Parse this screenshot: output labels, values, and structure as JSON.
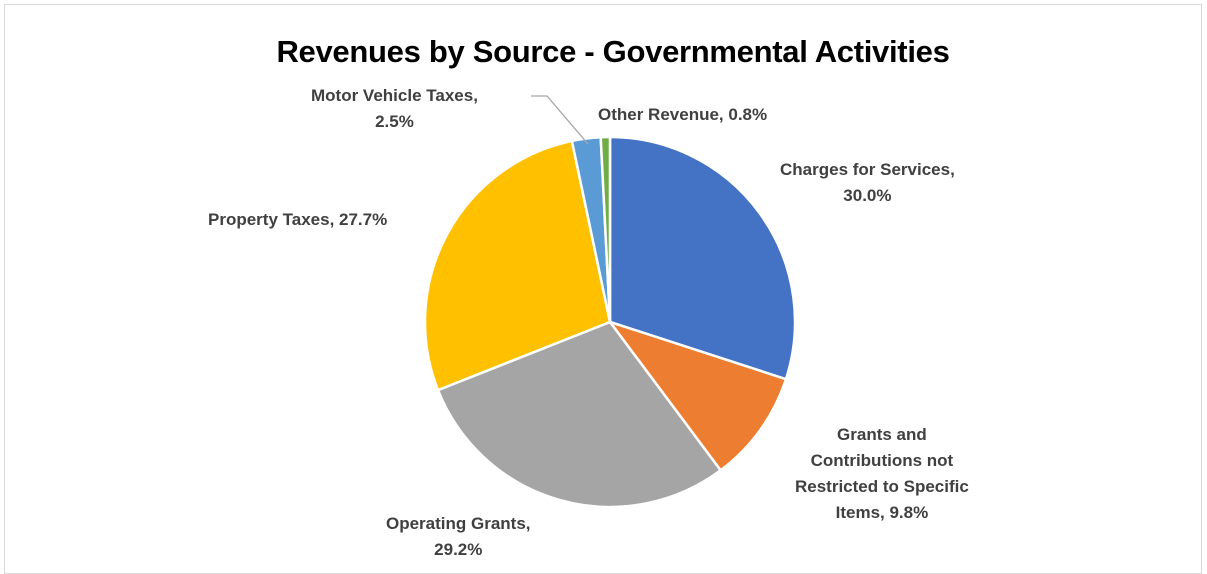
{
  "chart_data": {
    "type": "pie",
    "title": "Revenues by Source - Governmental Activities",
    "slices": [
      {
        "name": "Charges for Services",
        "value": 30.0,
        "label_line1": "Charges for Services,",
        "label_line2": "30.0%",
        "color": "#4472C4"
      },
      {
        "name": "Grants and Contributions not Restricted to Specific Items",
        "value": 9.8,
        "label_line1": "Grants and",
        "label_line2": "Contributions not",
        "label_line3": "Restricted to Specific",
        "label_line4": "Items, 9.8%",
        "color": "#ED7D31"
      },
      {
        "name": "Operating Grants",
        "value": 29.2,
        "label_line1": "Operating Grants,",
        "label_line2": "29.2%",
        "color": "#A5A5A5"
      },
      {
        "name": "Property Taxes",
        "value": 27.7,
        "label_line1": "Property Taxes, 27.7%",
        "color": "#FFC000"
      },
      {
        "name": "Motor Vehicle Taxes",
        "value": 2.5,
        "label_line1": "Motor Vehicle Taxes,",
        "label_line2": "2.5%",
        "color": "#5B9BD5"
      },
      {
        "name": "Other Revenue",
        "value": 0.8,
        "label_line1": "Other Revenue, 0.8%",
        "color": "#70AD47"
      }
    ],
    "start_angle": "12 o'clock",
    "direction": "clockwise",
    "legend": "none"
  }
}
